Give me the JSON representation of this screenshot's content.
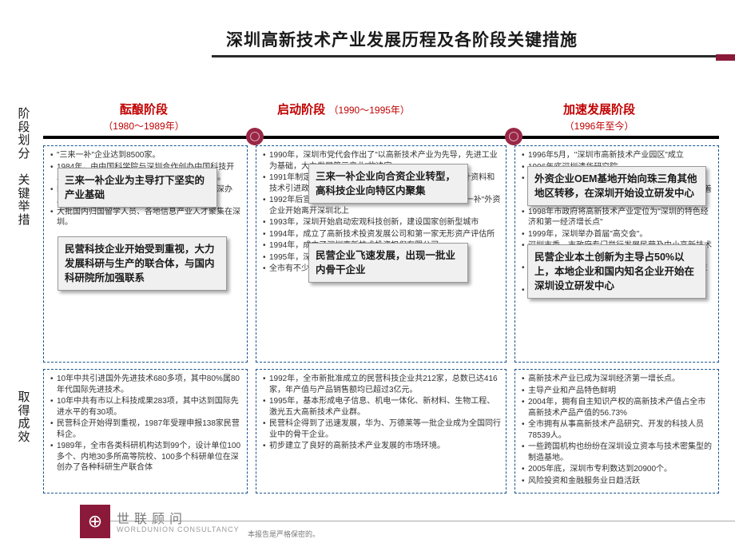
{
  "colors": {
    "accent": "#8b1a3a",
    "stage_text": "#c00000",
    "border_dash": "#1a5490",
    "title_rule": "#2a2a2a",
    "callout_bg": "#f0f0f0"
  },
  "title": "深圳高新技术产业发展历程及各阶段关键措施",
  "row_labels": {
    "stage": "阶段划分",
    "measures": "关键举措",
    "results": "取得成效"
  },
  "stages": [
    {
      "name": "酝酿阶段",
      "years": "（1980～1989年）"
    },
    {
      "name": "启动阶段",
      "years": "（1990～1995年）"
    },
    {
      "name": "加速发展阶段",
      "years": "（1996年至今）"
    }
  ],
  "callouts": {
    "c1": "三来一补企业为主导打下坚实的产业基础",
    "c2": "民营科技企业开始受到重视，大力发展科研与生产的联合体，与国内科研院所加强联系",
    "c3": "三来一补企业向合资企业转型，高科技企业向特区内聚集",
    "c4": "民营企业飞速发展，出现一批业内骨干企业",
    "c5": "外资企业OEM基地开始向珠三角其他地区转移，在深圳开始设立研发中心",
    "c6": "民营企业本土创新为主导占50%以上，本地企业和国内知名企业开始在深圳设立研发中心"
  },
  "measures": {
    "col1": [
      "\"三来一补\"企业达到8500家。",
      "1984年，由中国科学院与深圳合作创办中国科技开发院；随后国内有30多院校在深圳市共办企业。",
      "国家原各部委企业、国营大企业、军工企业来深办厂。",
      "大批国内归国留学人员、各地信息产业人才聚集在深圳。"
    ],
    "col2": [
      "1990年，深圳市党代会作出了\"以高新技术产业为先导，先进工业为基础，大力发展第三产业\"的决定",
      "1991年制定加快发展民营科技企业、外商投资科技企业计资料和技术引进政策，深圳高科技板起步的正式统一",
      "1992年后宣布取消对传统制造业的许多优惠政策，\"三来一补\"外资企业开始离开深圳北上",
      "1993年，深圳开始启动宏观科技创新，建设国家创新型城市",
      "1994年，成立了高新技术投资发展公司和第一家无形资产评估所",
      "1994年，成立了深圳高新技术投资担保有限公司",
      "1995年，深圳出台了第一部企业秘密保护法。",
      "全市有不少\"三来一补\"企业转型为三资企业。"
    ],
    "col3": [
      "1996年5月，\"深圳市高新技术产业园区\"成立",
      "1996年底深圳清华研究院",
      "1999年，深圳虚拟大学园建立；深圳研发基地和产品主要出口欧洲；深圳虚拟大学园正式建立，标志着深圳产学研进一步推进。",
      "1998年市政府将高新技术产业定位为\"深圳的特色经济和第一经济增长点\"",
      "1999年，深圳举办首届\"高交会\"。",
      "深圳市委、市政府专门举行发展民营及中小高新技术产业会议",
      "2000年，深圳市决定建设占地3000亩的深圳国际技术创新研究院",
      "2001年，制定构筑高新技术产业带的战略决策。"
    ]
  },
  "results": {
    "col1": [
      "10年中共引进国外先进技术680多项，其中80%属80年代国际先进技术。",
      "10年中共有市以上科技成果283项，其中达到国际先进水平的有30项。",
      "民营科企开始得到重视，1987年受理申报138家民营科企。",
      "1989年，全市各类科研机构达到99个，设计单位100多个、内地30多所高等院校、100多个科研单位在深创办了各种科研生产联合体"
    ],
    "col2": [
      "1992年，全市新批准成立的民营科技企业共212家，总数已达416家，年产值与产品销售额均已超过3亿元。",
      "1995年，基本形成电子信息、机电一体化、新材料、生物工程、激光五大高新技术产业群。",
      "民营科企得到了迅速发展，华为、万德莱等一批企业成为全国同行业中的骨干企业。",
      "初步建立了良好的高新技术产业发展的市场环境。"
    ],
    "col3": [
      "高新技术产业已成为深圳经济第一增长点。",
      "主导产业和产品特色鲜明",
      "2004年，拥有自主知识产权的高新技术产值占全市高新技术产品产值的56.73%",
      "全市拥有从事高新技术产品研究、开发的科技人员78539人。",
      "一些跨国机构也纷纷在深圳设立资本与技术密集型的制造基地。",
      "2005年底，深圳市专利数达到20900个。",
      "风险投资和金融服务业日趋活跃"
    ]
  },
  "footer": {
    "brand_cn": "世联顾问",
    "brand_en": "WORLDUNION CONSULTANCY",
    "confidential": "本报告是严格保密的。"
  }
}
